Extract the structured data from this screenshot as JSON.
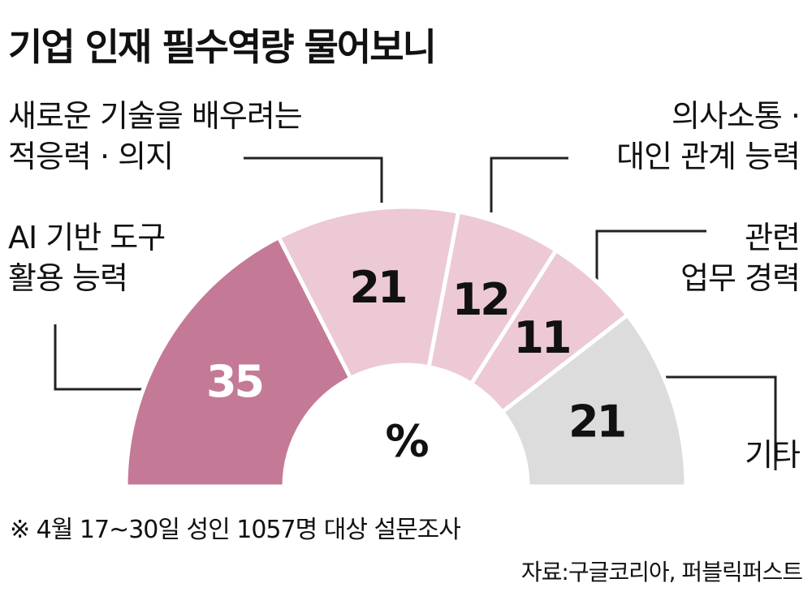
{
  "chart_data": {
    "type": "half-donut",
    "title": "기업 인재 필수역량 물어보니",
    "categories": [
      "AI 기반 도구\n활용 능력",
      "새로운 기술을 배우려는\n적응력 · 의지",
      "의사소통 ·\n대인 관계 능력",
      "관련\n업무 경력",
      "기타"
    ],
    "values": [
      35,
      21,
      12,
      11,
      21
    ],
    "colors": [
      "#c47a97",
      "#ecc9d5",
      "#ecc9d5",
      "#ecc9d5",
      "#dcdcdc"
    ],
    "value_colors": [
      "#ffffff",
      "#111111",
      "#111111",
      "#111111",
      "#111111"
    ],
    "unit": "%",
    "note": "※ 4월 17~30일 성인 1057명 대상 설문조사",
    "source": "자료:구글코리아, 퍼블릭퍼스트"
  }
}
